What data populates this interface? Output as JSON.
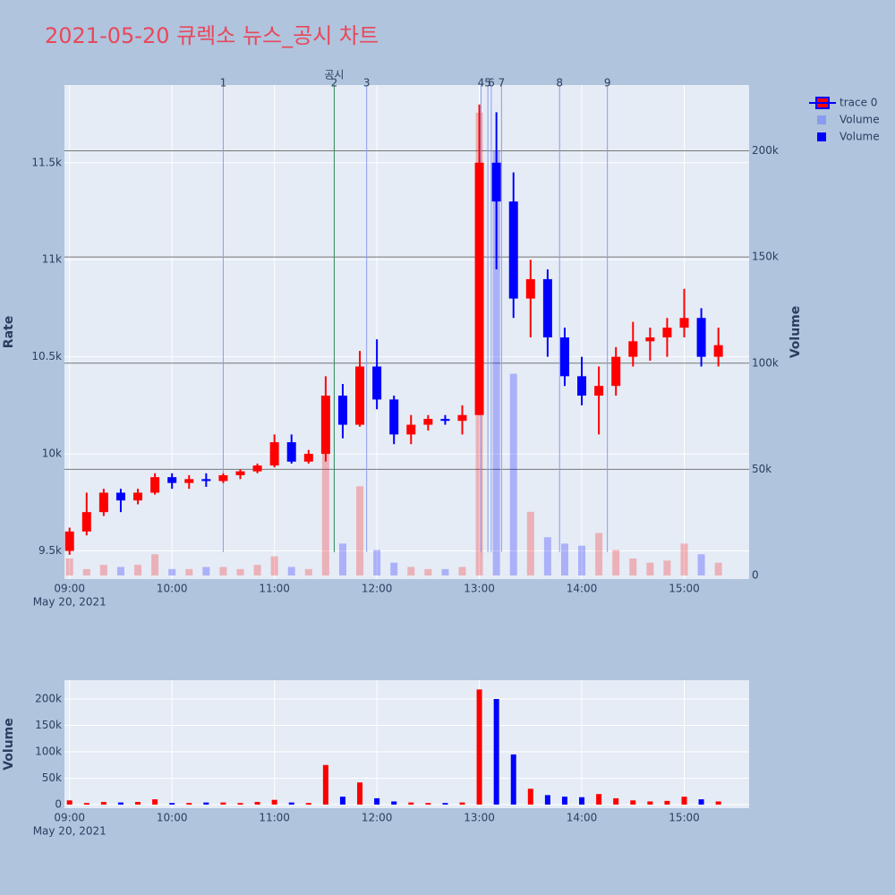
{
  "chart_data": [
    {
      "type": "candlestick",
      "title": "2021-05-20 큐렉소 뉴스_공시 차트",
      "title_color": "#e8485a",
      "name": "trace 0",
      "increasing_color": "#ff0000",
      "decreasing_color": "#0000ff",
      "x": [
        "2021-05-20 09:00",
        "2021-05-20 09:10",
        "2021-05-20 09:20",
        "2021-05-20 09:30",
        "2021-05-20 09:40",
        "2021-05-20 09:50",
        "2021-05-20 10:00",
        "2021-05-20 10:10",
        "2021-05-20 10:20",
        "2021-05-20 10:30",
        "2021-05-20 10:40",
        "2021-05-20 10:50",
        "2021-05-20 11:00",
        "2021-05-20 11:10",
        "2021-05-20 11:20",
        "2021-05-20 11:30",
        "2021-05-20 11:40",
        "2021-05-20 11:50",
        "2021-05-20 12:00",
        "2021-05-20 12:10",
        "2021-05-20 12:20",
        "2021-05-20 12:30",
        "2021-05-20 12:40",
        "2021-05-20 12:50",
        "2021-05-20 13:00",
        "2021-05-20 13:10",
        "2021-05-20 13:20",
        "2021-05-20 13:30",
        "2021-05-20 13:40",
        "2021-05-20 13:50",
        "2021-05-20 14:00",
        "2021-05-20 14:10",
        "2021-05-20 14:20",
        "2021-05-20 14:30",
        "2021-05-20 14:40",
        "2021-05-20 14:50",
        "2021-05-20 15:00",
        "2021-05-20 15:10",
        "2021-05-20 15:20"
      ],
      "open": [
        9500,
        9600,
        9700,
        9800,
        9760,
        9800,
        9880,
        9850,
        9870,
        9860,
        9890,
        9910,
        9940,
        10060,
        9960,
        10000,
        10300,
        10150,
        10450,
        10280,
        10100,
        10150,
        10180,
        10170,
        10200,
        11500,
        11300,
        10800,
        10900,
        10600,
        10400,
        10300,
        10350,
        10500,
        10580,
        10600,
        10650,
        10700,
        10500
      ],
      "high": [
        9620,
        9800,
        9820,
        9820,
        9820,
        9900,
        9900,
        9890,
        9900,
        9900,
        9920,
        9950,
        10100,
        10100,
        10020,
        10400,
        10360,
        10530,
        10590,
        10300,
        10200,
        10200,
        10200,
        10250,
        11800,
        11760,
        11450,
        11000,
        10950,
        10650,
        10500,
        10450,
        10550,
        10680,
        10650,
        10700,
        10850,
        10750,
        10650
      ],
      "low": [
        9480,
        9580,
        9680,
        9700,
        9740,
        9790,
        9820,
        9820,
        9830,
        9850,
        9870,
        9900,
        9930,
        9950,
        9950,
        9960,
        10080,
        10140,
        10230,
        10050,
        10050,
        10120,
        10150,
        10100,
        10200,
        10950,
        10700,
        10600,
        10500,
        10350,
        10250,
        10100,
        10300,
        10450,
        10480,
        10500,
        10600,
        10450,
        10450
      ],
      "close": [
        9600,
        9700,
        9800,
        9760,
        9800,
        9880,
        9850,
        9870,
        9860,
        9890,
        9910,
        9940,
        10060,
        9960,
        10000,
        10300,
        10150,
        10450,
        10280,
        10100,
        10150,
        10180,
        10170,
        10200,
        11500,
        11300,
        10800,
        10900,
        10600,
        10400,
        10300,
        10350,
        10500,
        10580,
        10600,
        10650,
        10700,
        10500,
        10560
      ],
      "series": [
        {
          "name": "Volume",
          "color": "#8a9cf0",
          "axis": "y2",
          "values": [
            8000,
            3000,
            5000,
            4000,
            5000,
            10000,
            3000,
            3000,
            4000,
            4000,
            3000,
            5000,
            9000,
            4000,
            3000,
            75000,
            15000,
            42000,
            12000,
            6000,
            4000,
            3000,
            3000,
            4000,
            218000,
            200000,
            95000,
            30000,
            18000,
            15000,
            14000,
            20000,
            12000,
            8000,
            6000,
            7000,
            15000,
            10000,
            6000
          ]
        }
      ],
      "yaxis_title": "Rate",
      "y2axis_title": "Volume",
      "xlim": [
        "2021-05-20 08:57",
        "2021-05-20 15:38"
      ],
      "xticks": [
        {
          "value": "2021-05-20 09:00",
          "label": "09:00"
        },
        {
          "value": "2021-05-20 10:00",
          "label": "10:00"
        },
        {
          "value": "2021-05-20 11:00",
          "label": "11:00"
        },
        {
          "value": "2021-05-20 12:00",
          "label": "12:00"
        },
        {
          "value": "2021-05-20 13:00",
          "label": "13:00"
        },
        {
          "value": "2021-05-20 14:00",
          "label": "14:00"
        },
        {
          "value": "2021-05-20 15:00",
          "label": "15:00"
        }
      ],
      "x_date_label": "May 20, 2021",
      "ylim": [
        9355,
        11900
      ],
      "yticks": [
        {
          "value": 9500,
          "label": "9.5k"
        },
        {
          "value": 10000,
          "label": "10k"
        },
        {
          "value": 10500,
          "label": "10.5k"
        },
        {
          "value": 11000,
          "label": "11k"
        },
        {
          "value": 11500,
          "label": "11.5k"
        }
      ],
      "y2lim": [
        -1700,
        231000
      ],
      "y2ticks": [
        0,
        {
          "value": 50000,
          "label": "50k"
        },
        {
          "value": 100000,
          "label": "100k"
        },
        {
          "value": 150000,
          "label": "150k"
        },
        {
          "value": 200000,
          "label": "200k"
        }
      ],
      "events": [
        {
          "label": "1",
          "x": "2021-05-20 10:30",
          "color": "#8a9cf0"
        },
        {
          "label": "2",
          "x": "2021-05-20 11:35",
          "color": "#2e8b57",
          "annotation": "공시"
        },
        {
          "label": "3",
          "x": "2021-05-20 11:54",
          "color": "#8a9cf0"
        },
        {
          "label": "4",
          "x": "2021-05-20 13:01",
          "color": "#8a9cf0"
        },
        {
          "label": "5",
          "x": "2021-05-20 13:05",
          "color": "#8a9cf0"
        },
        {
          "label": "6",
          "x": "2021-05-20 13:07",
          "color": "#8a9cf0"
        },
        {
          "label": "7",
          "x": "2021-05-20 13:13",
          "color": "#8a9cf0"
        },
        {
          "label": "8",
          "x": "2021-05-20 13:47",
          "color": "#8a9cf0"
        },
        {
          "label": "9",
          "x": "2021-05-20 14:15",
          "color": "#8a9cf0"
        }
      ],
      "grid": true
    },
    {
      "type": "bar",
      "series": [
        {
          "name": "Volume",
          "color": "#0000ff",
          "values": [
            8000,
            3000,
            5000,
            4000,
            5000,
            10000,
            3000,
            3000,
            4000,
            4000,
            3000,
            5000,
            9000,
            4000,
            3000,
            75000,
            15000,
            42000,
            12000,
            6000,
            4000,
            3000,
            3000,
            4000,
            218000,
            200000,
            95000,
            30000,
            18000,
            15000,
            14000,
            20000,
            12000,
            8000,
            6000,
            7000,
            15000,
            10000,
            6000
          ]
        }
      ],
      "yaxis_title": "Volume",
      "xlim": [
        "2021-05-20 08:57",
        "2021-05-20 15:38"
      ],
      "xticks": [
        {
          "value": "2021-05-20 09:00",
          "label": "09:00"
        },
        {
          "value": "2021-05-20 10:00",
          "label": "10:00"
        },
        {
          "value": "2021-05-20 11:00",
          "label": "11:00"
        },
        {
          "value": "2021-05-20 12:00",
          "label": "12:00"
        },
        {
          "value": "2021-05-20 13:00",
          "label": "13:00"
        },
        {
          "value": "2021-05-20 14:00",
          "label": "14:00"
        },
        {
          "value": "2021-05-20 15:00",
          "label": "15:00"
        }
      ],
      "x_date_label": "May 20, 2021",
      "ylim": [
        -6800,
        235600
      ],
      "yticks": [
        0,
        {
          "value": 50000,
          "label": "50k"
        },
        {
          "value": 100000,
          "label": "100k"
        },
        {
          "value": 150000,
          "label": "150k"
        },
        {
          "value": 200000,
          "label": "200k"
        }
      ],
      "grid": true
    }
  ]
}
